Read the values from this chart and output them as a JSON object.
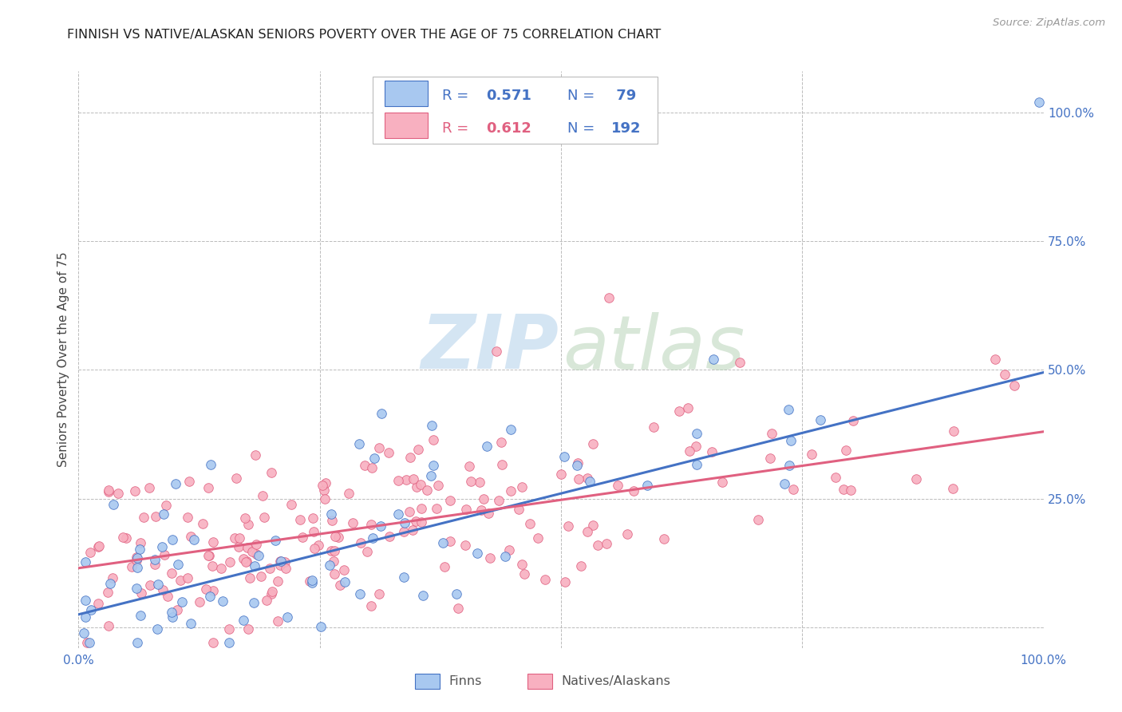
{
  "title": "FINNISH VS NATIVE/ALASKAN SENIORS POVERTY OVER THE AGE OF 75 CORRELATION CHART",
  "source": "Source: ZipAtlas.com",
  "ylabel": "Seniors Poverty Over the Age of 75",
  "xlim": [
    0,
    1.0
  ],
  "ylim": [
    -0.04,
    1.08
  ],
  "r_finns": 0.571,
  "n_finns": 79,
  "r_natives": 0.612,
  "n_natives": 192,
  "color_finns": "#A8C8F0",
  "color_natives": "#F8B0C0",
  "line_color_finns": "#4472C4",
  "line_color_natives": "#E06080",
  "background_color": "#FFFFFF",
  "grid_color": "#BBBBBB",
  "title_color": "#222222",
  "axis_label_color": "#444444",
  "tick_label_color": "#4472C4",
  "legend_r_color_finns": "#4472C4",
  "legend_r_color_natives": "#E06080",
  "legend_n_color": "#4472C4",
  "watermark_zip_color": "#B8D4EC",
  "watermark_atlas_color": "#B8D4B8"
}
